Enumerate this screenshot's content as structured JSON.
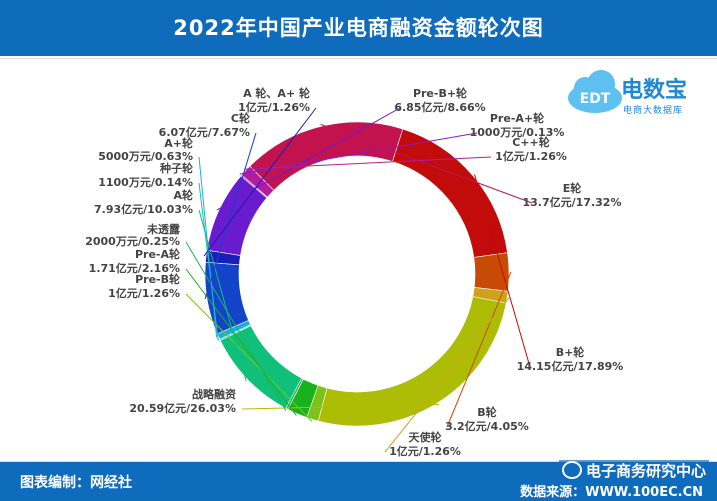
{
  "header": {
    "title": "2022年中国产业电商融资金额轮次图"
  },
  "logo": {
    "text": "电数宝",
    "sub": "电商大数据库",
    "badge": "EDT"
  },
  "footer": {
    "left": "图表编制：网经社",
    "right": "数据来源：WWW.100EC.CN",
    "wechat": "电子商务研究中心"
  },
  "colors": {
    "header_bg": "#0f6cbd",
    "footer_bg": "#0f6cbd"
  },
  "chart_data": {
    "type": "pie",
    "donut": true,
    "segments": [
      {
        "name": "Pre-B+轮",
        "text": "6.85亿元/8.66%",
        "percent": 8.66,
        "color": "#6a1bd0"
      },
      {
        "name": "Pre-A+轮",
        "text": "1000万元/0.13%",
        "percent": 0.13,
        "color": "#8a1bc9"
      },
      {
        "name": "C++轮",
        "text": "1亿元/1.26%",
        "percent": 1.26,
        "color": "#b21d9e"
      },
      {
        "name": "E轮",
        "text": "13.7亿元/17.32%",
        "percent": 17.32,
        "color": "#c2134e"
      },
      {
        "name": "B+轮",
        "text": "14.15亿元/17.89%",
        "percent": 17.89,
        "color": "#c20b0b"
      },
      {
        "name": "B轮",
        "text": "3.2亿元/4.05%",
        "percent": 4.05,
        "color": "#c94a06"
      },
      {
        "name": "天使轮",
        "text": "1亿元/1.26%",
        "percent": 1.26,
        "color": "#d0a21a"
      },
      {
        "name": "战略融资",
        "text": "20.59亿元/26.03%",
        "percent": 26.03,
        "color": "#adbd06"
      },
      {
        "name": "Pre-B轮",
        "text": "1亿元/1.26%",
        "percent": 1.26,
        "color": "#7cc21a"
      },
      {
        "name": "Pre-A轮",
        "text": "1.71亿元/2.16%",
        "percent": 2.16,
        "color": "#18b21c"
      },
      {
        "name": "未透露",
        "text": "2000万元/0.25%",
        "percent": 0.25,
        "color": "#18b55c"
      },
      {
        "name": "A轮",
        "text": "7.93亿元/10.03%",
        "percent": 10.03,
        "color": "#10c07a"
      },
      {
        "name": "种子轮",
        "text": "1100万元/0.14%",
        "percent": 0.14,
        "color": "#13c4a6"
      },
      {
        "name": "A+轮",
        "text": "5000万元/0.63%",
        "percent": 0.63,
        "color": "#19aee0"
      },
      {
        "name": "C轮",
        "text": "6.07亿元/7.67%",
        "percent": 7.67,
        "color": "#1343c9"
      },
      {
        "name": "A 轮、A+ 轮",
        "text": "1亿元/1.26%",
        "percent": 1.26,
        "color": "#161fb8"
      }
    ]
  }
}
